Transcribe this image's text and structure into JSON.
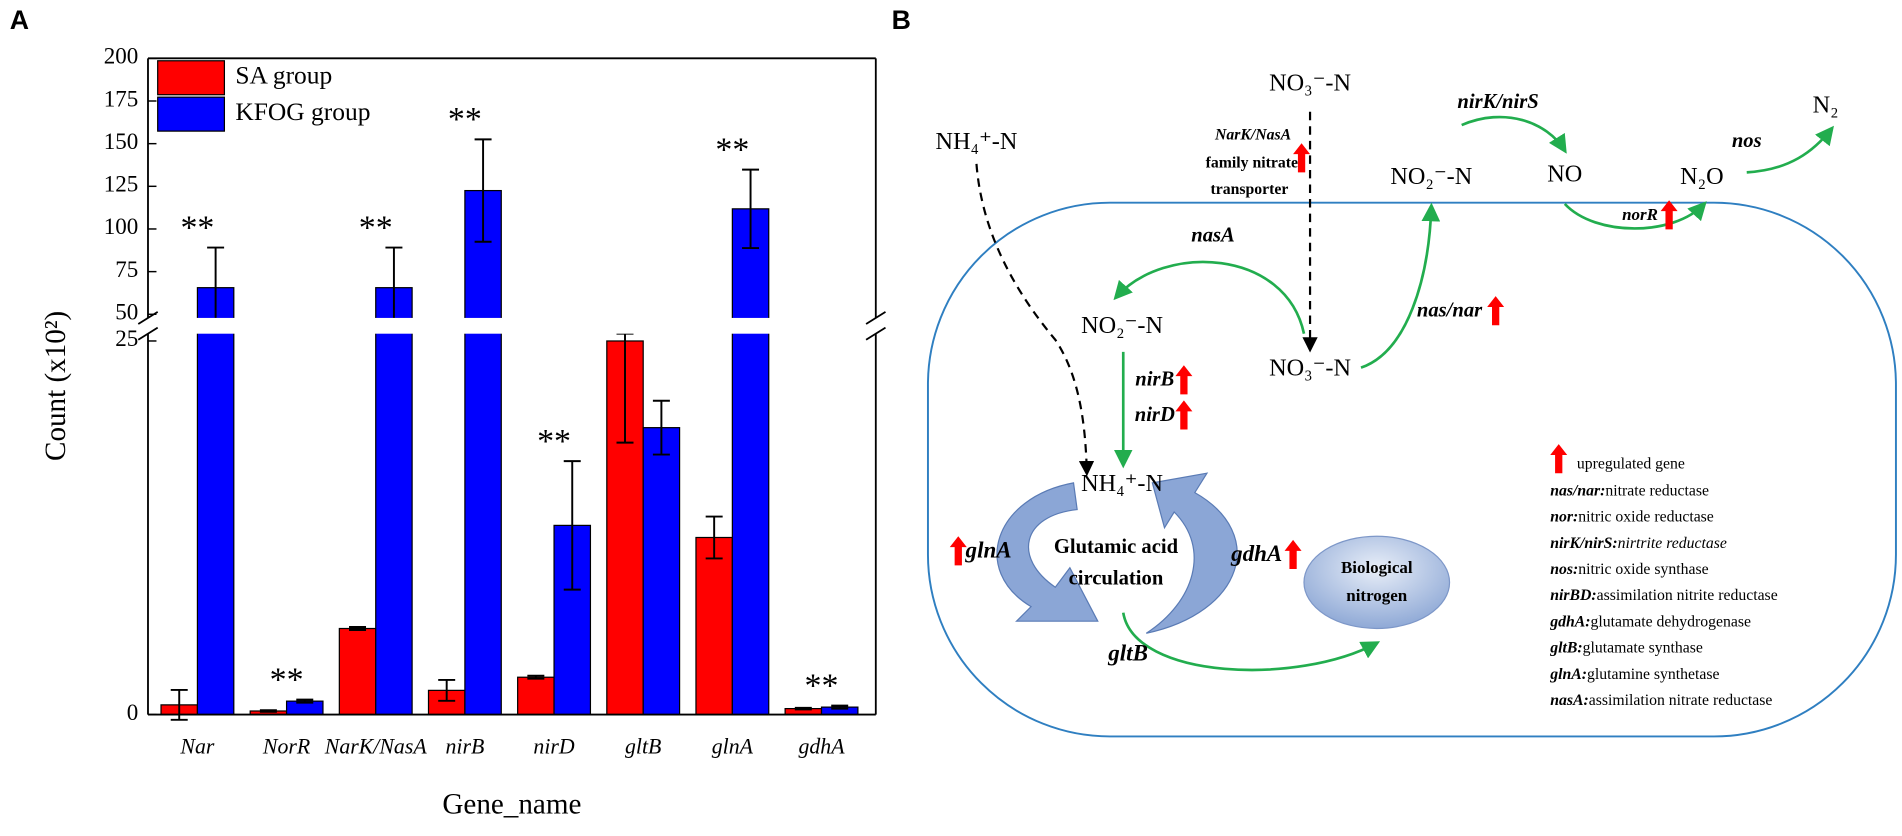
{
  "panel_labels": [
    "A",
    "B"
  ],
  "chart_data": {
    "type": "bar",
    "categories": [
      "Nar",
      "NorR",
      "NarK/NasA",
      "nirB",
      "nirD",
      "gltB",
      "glnA",
      "gdhA"
    ],
    "series": [
      {
        "name": "SA group",
        "color": "#ff0000",
        "values": [
          0.65,
          0.24,
          5.76,
          1.62,
          2.5,
          25,
          11.85,
          0.4
        ],
        "errors": [
          1,
          0.05,
          0.1,
          0.7,
          0.1,
          6.8,
          1.4,
          0.05
        ]
      },
      {
        "name": "KFOG group",
        "color": "#0000ff",
        "values": [
          65.6,
          0.9,
          65.6,
          122.5,
          12.66,
          19.2,
          111.8,
          0.5
        ],
        "errors": [
          23.5,
          0.1,
          23.5,
          30,
          4.3,
          1.8,
          23,
          0.1
        ]
      }
    ],
    "annotations": [
      "**",
      "**",
      "**",
      "**",
      "**",
      null,
      "**",
      "**"
    ],
    "ylim": [
      0,
      200
    ],
    "ybreak": [
      25,
      50
    ],
    "yticks": [
      0,
      25,
      50,
      75,
      100,
      125,
      150,
      175,
      200
    ],
    "xlabel": "Gene_name",
    "ylabel": "Count (x10²)",
    "legend": "upper left"
  },
  "diagram": {
    "nodes": {
      "no3_top": "NO₃⁻-N",
      "nh4_top": "NH₄⁺-N",
      "no2_out": "NO₂⁻-N",
      "no": "NO",
      "n2o": "N₂O",
      "n2": "N₂",
      "no2_in": "NO₂⁻-N",
      "no3_in": "NO₃⁻-N",
      "nh4_in": "NH₄⁺-N",
      "cycle": [
        "Glutamic acid",
        "circulation"
      ],
      "bio": [
        "Biological",
        "nitrogen"
      ]
    },
    "genes": {
      "narK": "NarK/NasA",
      "transporter": [
        "family nitrate",
        "transporter"
      ],
      "nirKS": "nirK/nirS",
      "nos": "nos",
      "norR": "norR",
      "nasA": "nasA",
      "nasnar": "nas/nar",
      "nirB": "nirB",
      "nirD": "nirD",
      "glnA": "glnA",
      "gdhA": "gdhA",
      "gltB": "gltB"
    },
    "legend": {
      "title": "upregulated gene",
      "items": [
        {
          "term": "nas/nar:",
          "desc": "nitrate reductase"
        },
        {
          "term": "nor:",
          "desc": "nitric oxide reductase"
        },
        {
          "term": "nirK/nirS:",
          "desc": "nirtrite reductase"
        },
        {
          "term": "nos:",
          "desc": "nitric oxide synthase"
        },
        {
          "term": "nirBD:",
          "desc": "assimilation nitrite reductase"
        },
        {
          "term": "gdhA:",
          "desc": "glutamate dehydrogenase"
        },
        {
          "term": "gltB:",
          "desc": "glutamate synthase"
        },
        {
          "term": "glnA:",
          "desc": "glutamine synthetase"
        },
        {
          "term": "nasA:",
          "desc": "assimilation nitrate reductase"
        }
      ]
    }
  }
}
